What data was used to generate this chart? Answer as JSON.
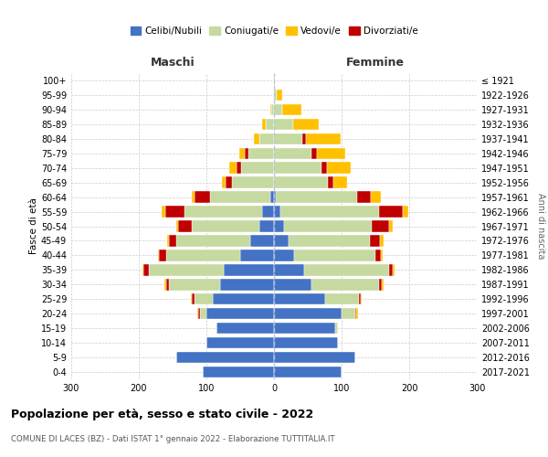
{
  "age_groups": [
    "0-4",
    "5-9",
    "10-14",
    "15-19",
    "20-24",
    "25-29",
    "30-34",
    "35-39",
    "40-44",
    "45-49",
    "50-54",
    "55-59",
    "60-64",
    "65-69",
    "70-74",
    "75-79",
    "80-84",
    "85-89",
    "90-94",
    "95-99",
    "100+"
  ],
  "birth_years": [
    "2017-2021",
    "2012-2016",
    "2007-2011",
    "2002-2006",
    "1997-2001",
    "1992-1996",
    "1987-1991",
    "1982-1986",
    "1977-1981",
    "1972-1976",
    "1967-1971",
    "1962-1966",
    "1957-1961",
    "1952-1956",
    "1947-1951",
    "1942-1946",
    "1937-1941",
    "1932-1936",
    "1927-1931",
    "1922-1926",
    "≤ 1921"
  ],
  "males_celibe": [
    105,
    145,
    100,
    85,
    100,
    90,
    80,
    75,
    50,
    35,
    22,
    18,
    5,
    0,
    0,
    0,
    0,
    0,
    0,
    0,
    0
  ],
  "males_coniugato": [
    0,
    0,
    0,
    0,
    10,
    28,
    75,
    110,
    110,
    110,
    100,
    115,
    90,
    62,
    48,
    38,
    22,
    12,
    4,
    0,
    0
  ],
  "males_vedovo": [
    0,
    0,
    0,
    0,
    2,
    2,
    2,
    2,
    2,
    3,
    3,
    5,
    5,
    5,
    10,
    8,
    8,
    5,
    2,
    0,
    0
  ],
  "males_divorziato": [
    0,
    0,
    0,
    0,
    2,
    3,
    5,
    8,
    10,
    10,
    20,
    28,
    22,
    10,
    8,
    5,
    0,
    0,
    0,
    0,
    0
  ],
  "females_nubile": [
    100,
    120,
    95,
    90,
    100,
    75,
    55,
    45,
    30,
    22,
    15,
    10,
    3,
    0,
    0,
    0,
    0,
    0,
    0,
    0,
    0
  ],
  "females_coniugata": [
    0,
    0,
    0,
    5,
    20,
    50,
    100,
    125,
    120,
    120,
    130,
    145,
    120,
    80,
    70,
    55,
    42,
    28,
    12,
    4,
    0
  ],
  "females_vedova": [
    0,
    0,
    0,
    0,
    2,
    2,
    2,
    3,
    3,
    5,
    5,
    8,
    15,
    20,
    35,
    42,
    52,
    38,
    28,
    8,
    2
  ],
  "females_divorziata": [
    0,
    0,
    0,
    0,
    2,
    3,
    5,
    5,
    8,
    15,
    25,
    35,
    20,
    8,
    8,
    8,
    5,
    0,
    0,
    0,
    0
  ],
  "colors": {
    "celibe": "#4472c4",
    "coniugato": "#c5d9a0",
    "vedovo": "#ffc000",
    "divorziato": "#c00000"
  },
  "title": "Popolazione per età, sesso e stato civile - 2022",
  "subtitle": "COMUNE DI LACES (BZ) - Dati ISTAT 1° gennaio 2022 - Elaborazione TUTTITALIA.IT",
  "label_maschi": "Maschi",
  "label_femmine": "Femmine",
  "ylabel_left": "Fasce di età",
  "ylabel_right": "Anni di nascita",
  "legend_labels": [
    "Celibi/Nubili",
    "Coniugati/e",
    "Vedovi/e",
    "Divorziati/e"
  ],
  "xlim": 300
}
